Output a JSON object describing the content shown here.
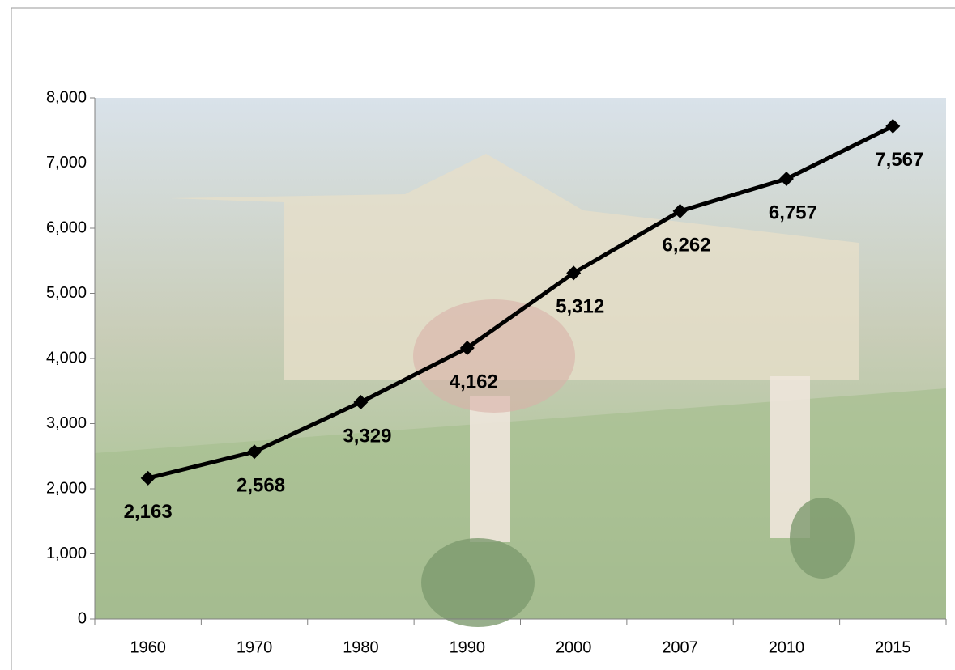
{
  "chart_data": {
    "type": "line",
    "categories": [
      "1960",
      "1970",
      "1980",
      "1990",
      "2000",
      "2007",
      "2010",
      "2015"
    ],
    "values": [
      2163,
      2568,
      3329,
      4162,
      5312,
      6262,
      6757,
      7567
    ],
    "value_labels": [
      "2,163",
      "2,568",
      "3,329",
      "4,162",
      "5,312",
      "6,262",
      "6,757",
      "7,567"
    ],
    "color": "#000000",
    "ylim": [
      0,
      8000
    ],
    "yticks": [
      0,
      {
        "value": 1000,
        "label": "1,000"
      },
      {
        "value": 2000,
        "label": "2,000"
      },
      {
        "value": 3000,
        "label": "3,000"
      },
      {
        "value": 4000,
        "label": "4,000"
      },
      {
        "value": 5000,
        "label": "5,000"
      },
      {
        "value": 6000,
        "label": "6,000"
      },
      {
        "value": 7000,
        "label": "7,000"
      },
      {
        "value": 8000,
        "label": "8,000"
      }
    ]
  }
}
